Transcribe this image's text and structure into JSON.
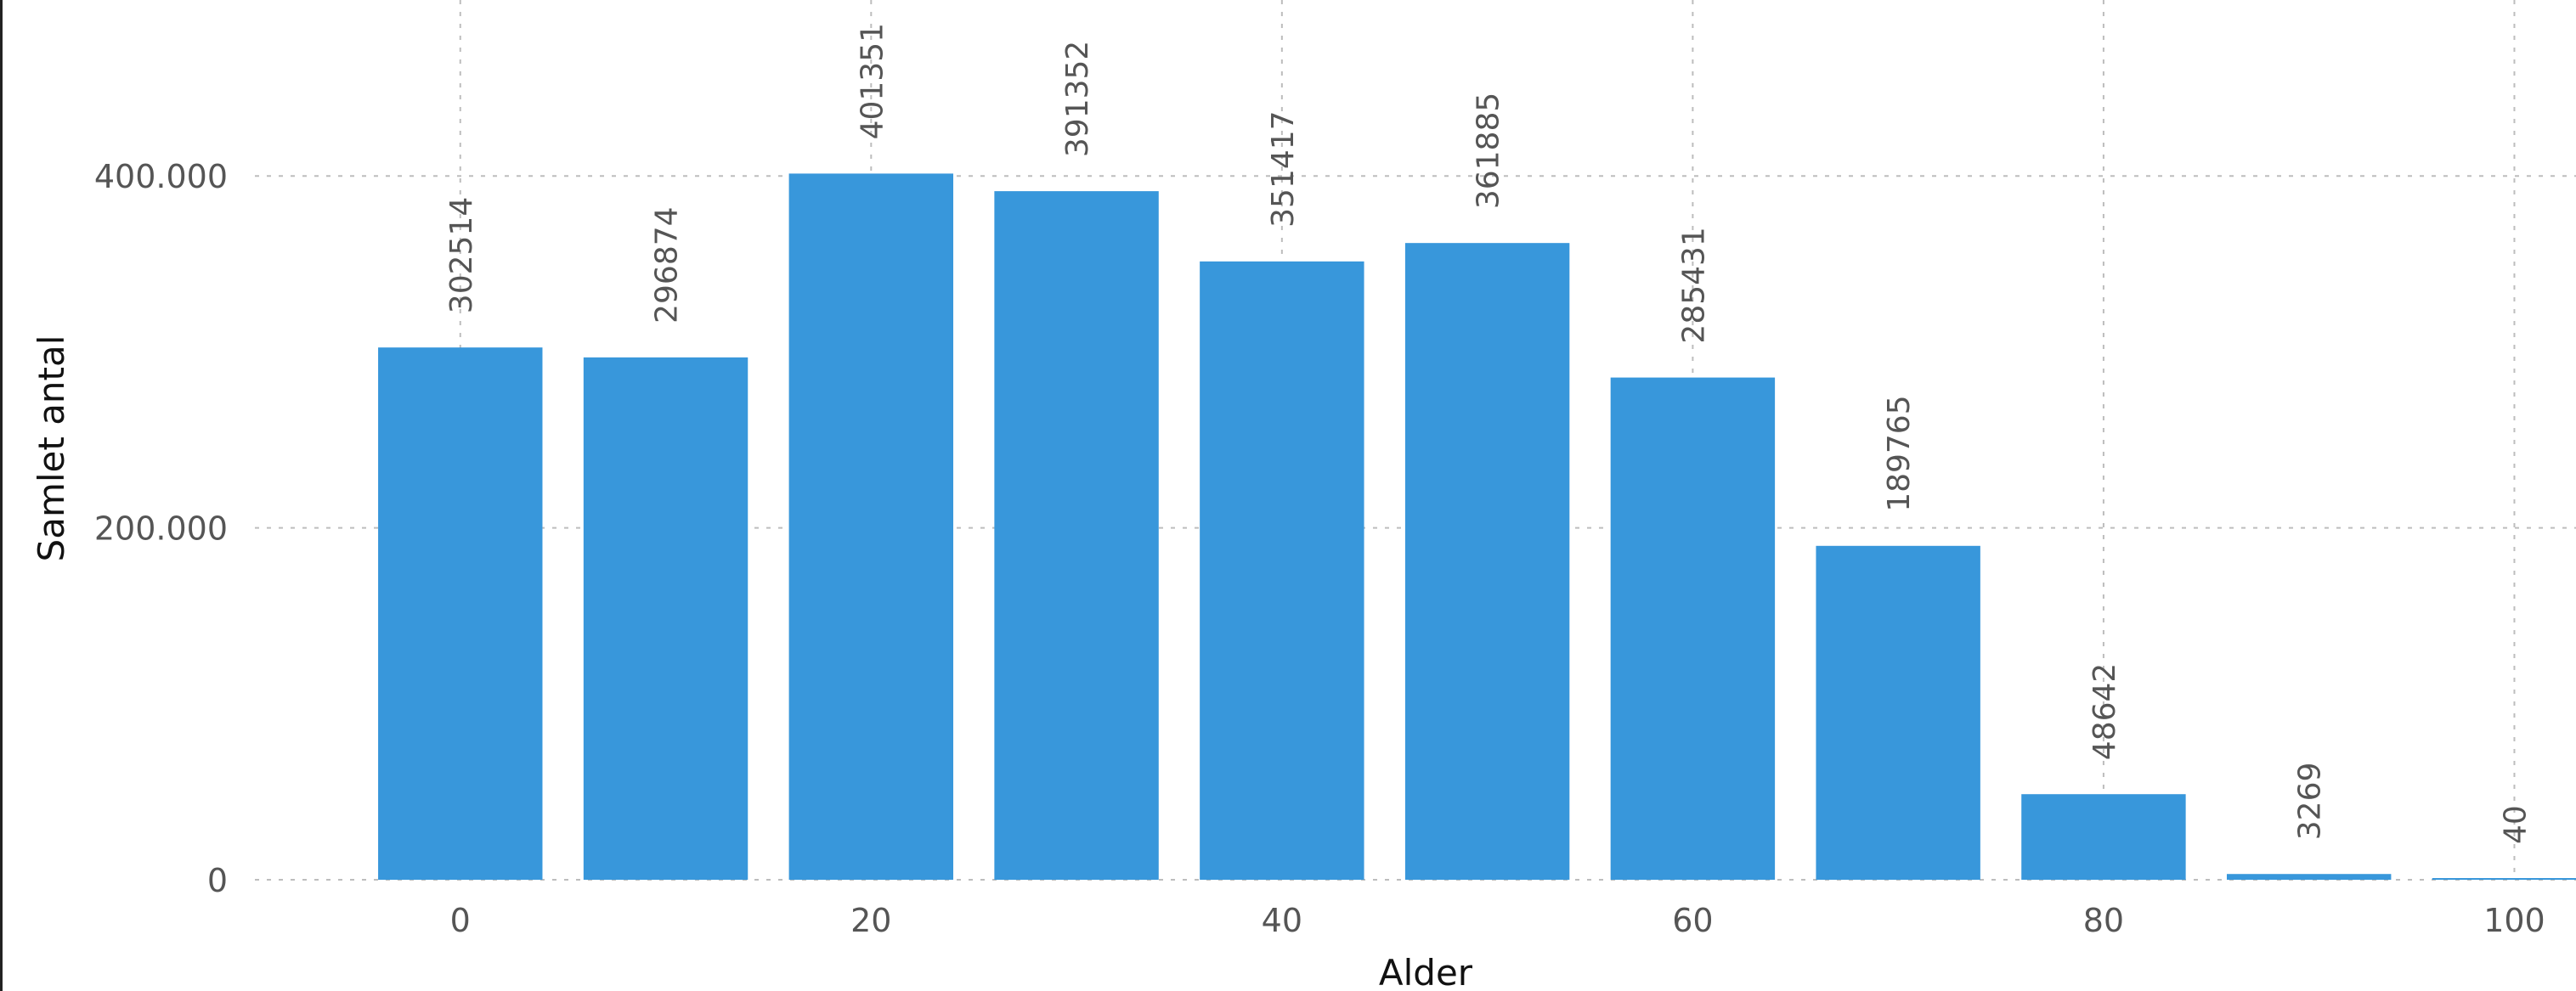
{
  "chart_data": {
    "type": "bar",
    "title": "",
    "xlabel": "Alder",
    "ylabel": "Samlet antal",
    "x": [
      0,
      10,
      20,
      30,
      40,
      50,
      60,
      70,
      80,
      90,
      100
    ],
    "values": [
      302514,
      296874,
      401351,
      391352,
      351417,
      361885,
      285431,
      189765,
      48642,
      3269,
      40
    ],
    "data_labels": [
      "302514",
      "296874",
      "401351",
      "391352",
      "351417",
      "361885",
      "285431",
      "189765",
      "48642",
      "3269",
      "40"
    ],
    "x_ticks": [
      0,
      20,
      40,
      60,
      80,
      100
    ],
    "x_tick_labels": [
      "0",
      "20",
      "40",
      "60",
      "80",
      "100"
    ],
    "y_ticks": [
      0,
      200000,
      400000
    ],
    "y_tick_labels": [
      "0",
      "200.000",
      "400.000"
    ],
    "xlim": [
      -10,
      103
    ],
    "ylim": [
      0,
      500000
    ],
    "grid": true,
    "bar_color": "#3897db"
  }
}
